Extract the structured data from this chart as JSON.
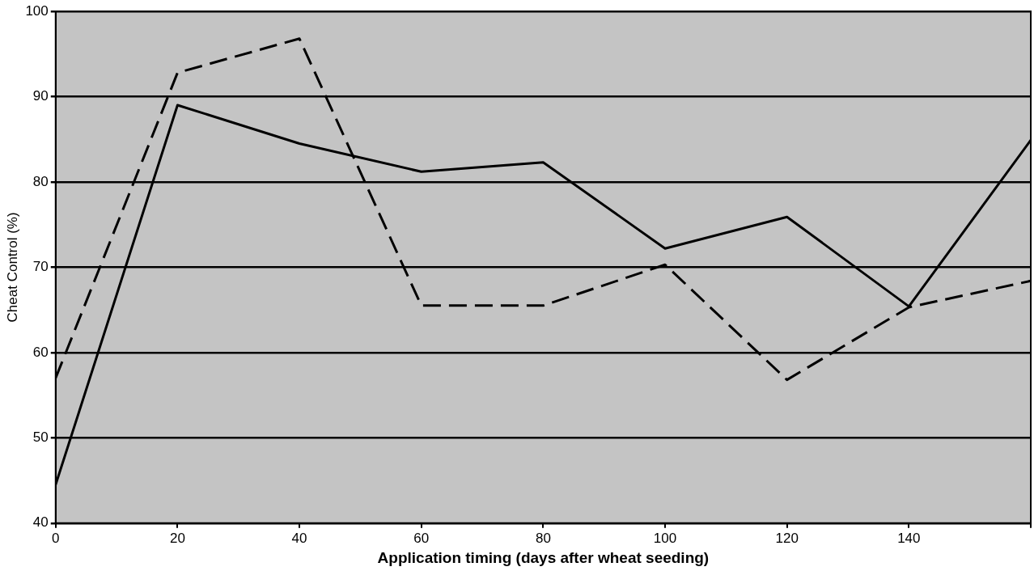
{
  "chart_data": {
    "type": "line",
    "xlabel": "Application timing (days after wheat seeding)",
    "ylabel": "Cheat Control (%)",
    "x": [
      0,
      20,
      40,
      60,
      80,
      100,
      120,
      140,
      160
    ],
    "series": [
      {
        "color": "#000000",
        "line_style": "solid",
        "values": [
          44.5,
          89,
          84.5,
          81.2,
          82.3,
          72.2,
          75.9,
          65.4,
          84.9
        ]
      },
      {
        "color": "#000000",
        "line_style": "dashed",
        "values": [
          57,
          92.8,
          96.8,
          65.5,
          65.5,
          70.3,
          56.8,
          65.3,
          68.4
        ]
      }
    ],
    "xlim": [
      0,
      160
    ],
    "xticks": [
      0,
      20,
      40,
      60,
      80,
      100,
      120,
      140,
      {
        "value": 160,
        "label": null
      }
    ],
    "ylim": [
      40,
      100
    ],
    "yticks": [
      40,
      50,
      60,
      70,
      80,
      90,
      100
    ],
    "grid": "y",
    "legend": false,
    "marker": "none"
  }
}
